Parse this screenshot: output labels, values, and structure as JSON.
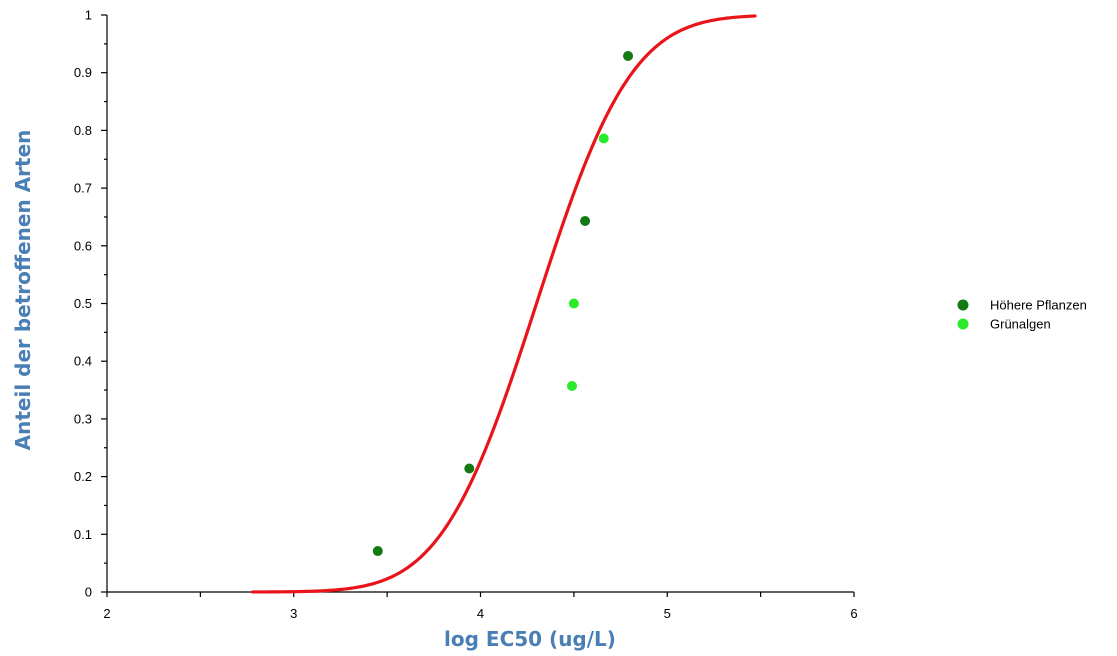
{
  "chart_data": {
    "type": "scatter",
    "title": "",
    "xlabel": "log EC50 (ug/L)",
    "ylabel": "Anteil der betroffenen Arten",
    "xlim": [
      2,
      6
    ],
    "ylim": [
      0,
      1
    ],
    "x_ticks": [
      "2",
      "3",
      "4",
      "5",
      "6"
    ],
    "y_ticks": [
      "0",
      "0.1",
      "0.2",
      "0.3",
      "0.4",
      "0.5",
      "0.6",
      "0.7",
      "0.8",
      "0.9",
      "1"
    ],
    "grid": false,
    "legend_position": "right",
    "label_color": "#4a7fb5",
    "series": [
      {
        "name": "Höhere Pflanzen",
        "color": "#137a13",
        "points": [
          {
            "x": 3.45,
            "y": 0.071
          },
          {
            "x": 3.94,
            "y": 0.214
          },
          {
            "x": 4.56,
            "y": 0.643
          },
          {
            "x": 4.79,
            "y": 0.929
          }
        ]
      },
      {
        "name": "Grünalgen",
        "color": "#2bea2b",
        "points": [
          {
            "x": 4.49,
            "y": 0.357
          },
          {
            "x": 4.5,
            "y": 0.5
          },
          {
            "x": 4.66,
            "y": 0.786
          }
        ]
      }
    ],
    "fitted_curve": {
      "type": "sigmoid",
      "color": "#e8141a",
      "x_range": [
        2.78,
        5.47
      ],
      "mean": 4.3,
      "sd": 0.4
    }
  }
}
